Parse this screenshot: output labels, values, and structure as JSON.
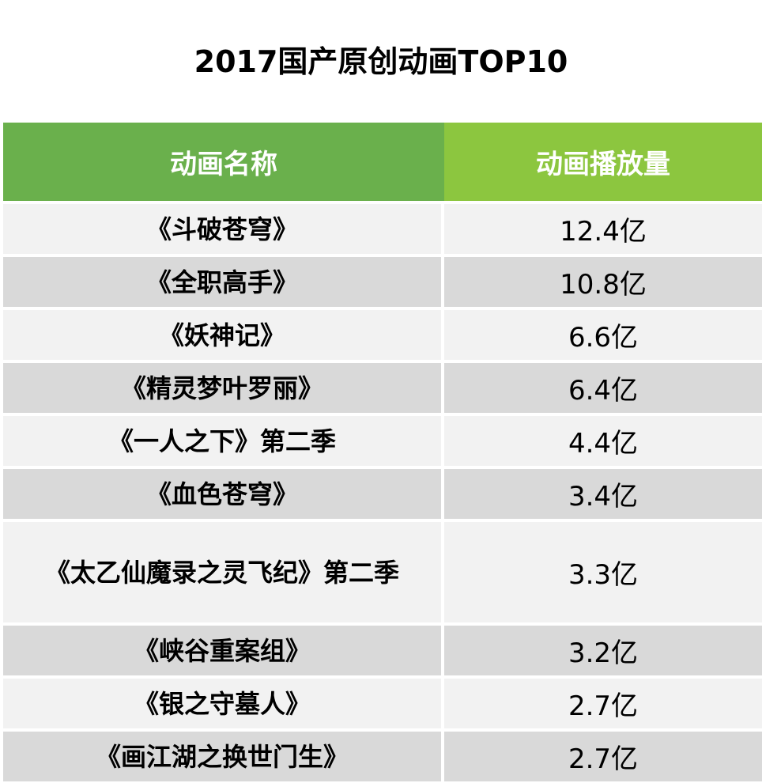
{
  "title": "2017国产原创动画TOP10",
  "colors": {
    "header_left": "#6ab04c",
    "header_right": "#8cc63f",
    "row_light": "#f2f2f2",
    "row_dark": "#d9d9d9"
  },
  "chart_data": {
    "type": "table",
    "title": "2017国产原创动画TOP10",
    "columns": [
      "动画名称",
      "动画播放量"
    ],
    "rows": [
      [
        "《斗破苍穹》",
        "12.4亿"
      ],
      [
        "《全职高手》",
        "10.8亿"
      ],
      [
        "《妖神记》",
        "6.6亿"
      ],
      [
        "《精灵梦叶罗丽》",
        "6.4亿"
      ],
      [
        "《一人之下》第二季",
        "4.4亿"
      ],
      [
        "《血色苍穹》",
        "3.4亿"
      ],
      [
        "《太乙仙魔录之灵飞纪》第二季",
        "3.3亿"
      ],
      [
        "《峡谷重案组》",
        "3.2亿"
      ],
      [
        "《银之守墓人》",
        "2.7亿"
      ],
      [
        "《画江湖之换世门生》",
        "2.7亿"
      ]
    ]
  }
}
